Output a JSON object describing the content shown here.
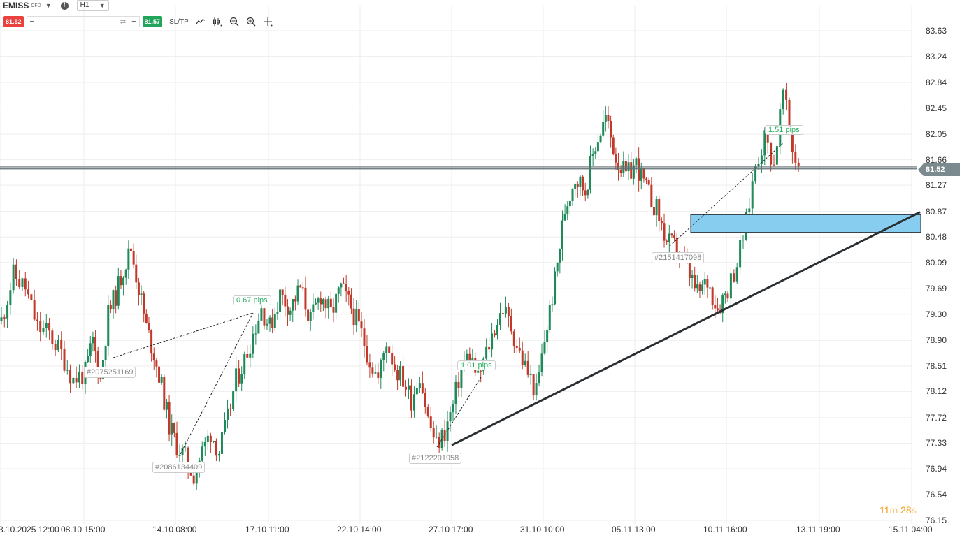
{
  "symbol": "EMISS",
  "instrument_type": "CFD",
  "timeframe": "H1",
  "sell_price": "81.52",
  "buy_price": "81.57",
  "sltp_label": "SL/TP",
  "current_price": "81.52",
  "timer": {
    "minutes": "11",
    "m": "m",
    "seconds": "28",
    "s": "s"
  },
  "price_axis": [
    "83.63",
    "83.24",
    "82.84",
    "82.45",
    "82.05",
    "81.66",
    "81.27",
    "80.87",
    "80.48",
    "80.09",
    "79.69",
    "79.30",
    "78.90",
    "78.51",
    "78.12",
    "77.72",
    "77.33",
    "76.94",
    "76.54",
    "76.15"
  ],
  "time_axis": [
    "3.10.2025 12:00",
    "08.10 15:00",
    "14.10 08:00",
    "17.10 11:00",
    "22.10 14:00",
    "27.10 17:00",
    "31.10 10:00",
    "05.11 13:00",
    "10.11 16:00",
    "13.11 19:00",
    "15.11 04:00"
  ],
  "trades": [
    {
      "id": "#2075251169",
      "pips": "0.67 pips"
    },
    {
      "id": "#2086134409"
    },
    {
      "id": "#2122201958",
      "pips": "1.01 pips"
    },
    {
      "id": "#2151417098",
      "pips": "1.51 pips"
    }
  ],
  "colors": {
    "up": "#1e8a5a",
    "down": "#c0392b",
    "zone": "#87cdf0",
    "trendline": "#2a2e30"
  },
  "chart_data": {
    "type": "candlestick",
    "title": "",
    "ylim": [
      76.15,
      83.63
    ],
    "close_path": [
      [
        "3.10.2025 12:00",
        79.2
      ],
      [
        "",
        79.9
      ],
      [
        "",
        79.7
      ],
      [
        "",
        79.1
      ],
      [
        "",
        79.0
      ],
      [
        "",
        78.7
      ],
      [
        "",
        78.3
      ],
      [
        "08.10 15:00",
        78.4
      ],
      [
        "",
        78.9
      ],
      [
        "",
        78.3
      ],
      [
        "",
        79.3
      ],
      [
        "",
        79.6
      ],
      [
        "",
        80.0
      ],
      [
        "",
        80.3
      ],
      [
        "",
        79.7
      ],
      [
        "",
        79.1
      ],
      [
        "",
        78.7
      ],
      [
        "",
        78.2
      ],
      [
        "",
        77.6
      ],
      [
        "14.10 08:00",
        77.3
      ],
      [
        "",
        77.1
      ],
      [
        "",
        76.85
      ],
      [
        "",
        77.2
      ],
      [
        "",
        77.5
      ],
      [
        "",
        77.2
      ],
      [
        "",
        77.7
      ],
      [
        "",
        78.3
      ],
      [
        "",
        78.6
      ],
      [
        "",
        79.0
      ],
      [
        "",
        79.4
      ],
      [
        "17.10 11:00",
        79.1
      ],
      [
        "",
        79.6
      ],
      [
        "",
        79.4
      ],
      [
        "",
        79.7
      ],
      [
        "",
        79.2
      ],
      [
        "",
        79.6
      ],
      [
        "",
        79.3
      ],
      [
        "",
        79.7
      ],
      [
        "",
        79.4
      ],
      [
        "22.10 14:00",
        79.0
      ],
      [
        "",
        78.6
      ],
      [
        "",
        78.3
      ],
      [
        "",
        78.9
      ],
      [
        "",
        78.5
      ],
      [
        "",
        78.3
      ],
      [
        "",
        78.0
      ],
      [
        "",
        78.4
      ],
      [
        "",
        77.7
      ],
      [
        "",
        77.3
      ],
      [
        "",
        77.5
      ],
      [
        "27.10 17:00",
        77.9
      ],
      [
        "",
        78.5
      ],
      [
        "",
        78.7
      ],
      [
        "",
        78.3
      ],
      [
        "",
        78.7
      ],
      [
        "",
        79.1
      ],
      [
        "",
        79.4
      ],
      [
        "",
        79.1
      ],
      [
        "",
        78.7
      ],
      [
        "",
        78.4
      ],
      [
        "",
        78.1
      ],
      [
        "31.10 10:00",
        78.9
      ],
      [
        "",
        79.8
      ],
      [
        "",
        80.9
      ],
      [
        "",
        81.4
      ],
      [
        "",
        81.2
      ],
      [
        "",
        81.9
      ],
      [
        "",
        82.3
      ],
      [
        "",
        81.7
      ],
      [
        "",
        81.4
      ],
      [
        "05.11 13:00",
        81.6
      ],
      [
        "",
        81.2
      ],
      [
        "",
        80.9
      ],
      [
        "",
        80.4
      ],
      [
        "",
        80.3
      ],
      [
        "",
        80.0
      ],
      [
        "",
        79.6
      ],
      [
        "",
        79.8
      ],
      [
        "",
        79.4
      ],
      [
        "10.11 16:00",
        79.7
      ],
      [
        "",
        80.1
      ],
      [
        "",
        80.7
      ],
      [
        "",
        81.6
      ],
      [
        "",
        82.0
      ],
      [
        "",
        81.6
      ],
      [
        "",
        82.7
      ],
      [
        "",
        81.8
      ],
      [
        "",
        81.5
      ]
    ],
    "horizontal_lines": [
      81.55,
      81.52
    ],
    "zone": {
      "from": 80.55,
      "to": 80.82
    },
    "trendline": [
      [
        "27.10 17:00",
        77.3
      ],
      [
        "15.11 04:00",
        80.86
      ]
    ]
  }
}
